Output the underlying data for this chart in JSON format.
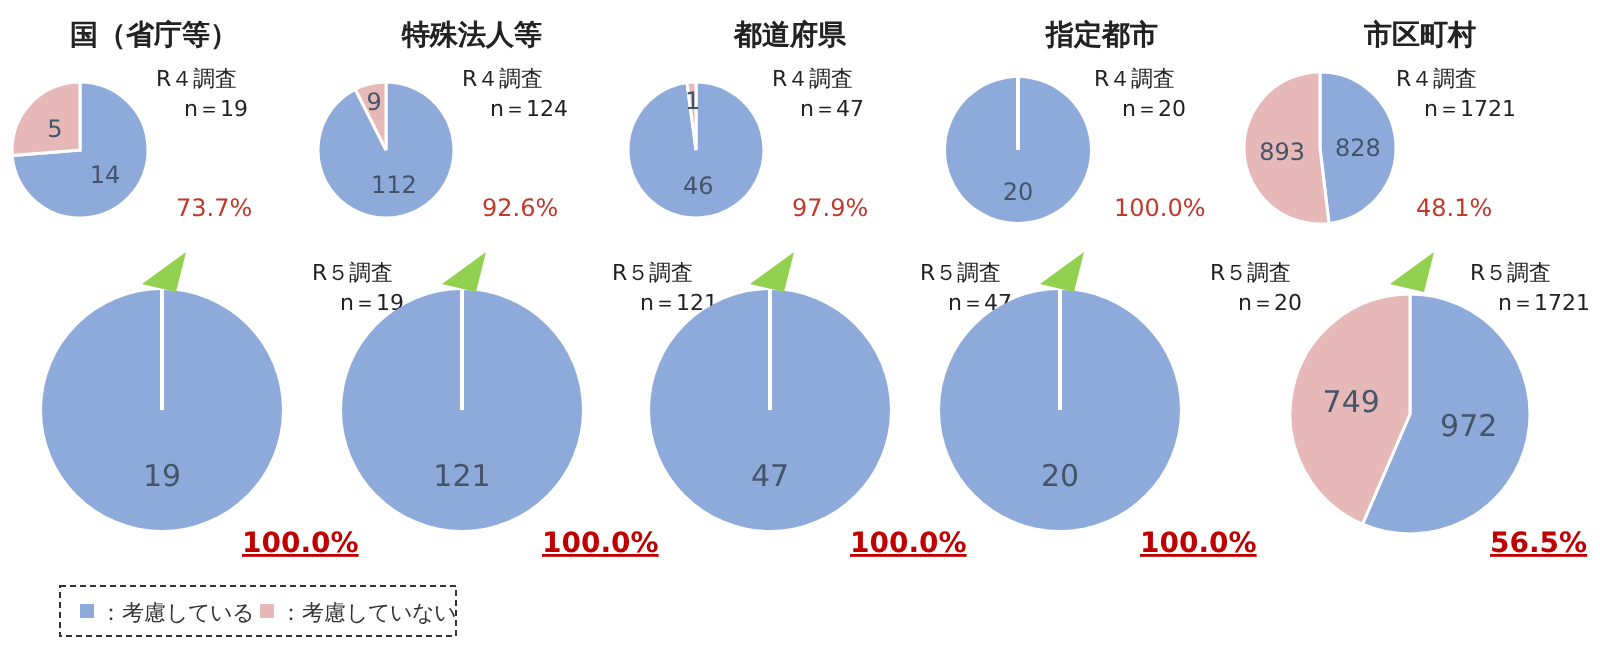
{
  "chart_data": [
    {
      "type": "pie",
      "title": "国（省庁等）",
      "categories": [
        "：考慮している",
        "：考慮していない"
      ],
      "values": [
        14,
        5
      ],
      "colors": [
        "#8eaadb",
        "#e6b8b7"
      ],
      "data_labels": true,
      "legend": "bottom",
      "annotations": [
        "R４調査",
        "n＝19",
        "73.7%"
      ]
    },
    {
      "type": "pie",
      "title": "特殊法人等",
      "categories": [
        null,
        null
      ],
      "values": [
        112,
        9
      ],
      "colors": [
        "#8eaadb",
        "#e6b8b7"
      ],
      "data_labels": true,
      "annotations": [
        "R４調査",
        "n＝124",
        "92.6%"
      ]
    },
    {
      "type": "pie",
      "title": "都道府県",
      "categories": [
        null,
        null
      ],
      "values": [
        46,
        1
      ],
      "colors": [
        "#8eaadb",
        "#e6b8b7"
      ],
      "data_labels": true,
      "annotations": [
        "R４調査",
        "n＝47",
        "97.9%"
      ]
    },
    {
      "type": "pie",
      "title": "指定都市",
      "categories": [
        null,
        null
      ],
      "values": [
        20,
        0
      ],
      "colors": [
        "#8eaadb",
        "#e6b8b7"
      ],
      "value_labels": [
        "20",
        null
      ],
      "annotations": [
        "R４調査",
        "n＝20",
        "100.0%"
      ]
    },
    {
      "type": "pie",
      "title": "市区町村",
      "categories": [
        null,
        null
      ],
      "values": [
        828,
        893
      ],
      "colors": [
        "#8eaadb",
        "#e6b8b7"
      ],
      "data_labels": true,
      "annotations": [
        "R４調査",
        "n＝1721",
        "48.1%"
      ]
    },
    {
      "type": "pie",
      "categories": [
        null,
        null
      ],
      "values": [
        19,
        0
      ],
      "colors": [
        "#8eaadb",
        "#e6b8b7"
      ],
      "value_labels": [
        "19",
        null
      ],
      "annotations": [
        "R５調査",
        "n＝19",
        "100.0%"
      ]
    },
    {
      "type": "pie",
      "categories": [
        null,
        null
      ],
      "values": [
        121,
        0
      ],
      "colors": [
        "#8eaadb",
        "#e6b8b7"
      ],
      "value_labels": [
        "121",
        null
      ],
      "annotations": [
        "R５調査",
        "n＝121",
        "100.0%"
      ]
    },
    {
      "type": "pie",
      "categories": [
        null,
        null
      ],
      "values": [
        47,
        0
      ],
      "colors": [
        "#8eaadb",
        "#e6b8b7"
      ],
      "value_labels": [
        "47",
        null
      ],
      "annotations": [
        "R５調査",
        "n＝47",
        "100.0%"
      ]
    },
    {
      "type": "pie",
      "categories": [
        null,
        null
      ],
      "values": [
        20,
        0
      ],
      "colors": [
        "#8eaadb",
        "#e6b8b7"
      ],
      "value_labels": [
        "20",
        null
      ],
      "annotations": [
        "R５調査",
        "n＝20",
        "100.0%"
      ]
    },
    {
      "type": "pie",
      "categories": [
        null,
        null
      ],
      "values": [
        972,
        749
      ],
      "colors": [
        "#8eaadb",
        "#e6b8b7"
      ],
      "data_labels": true,
      "annotations": [
        "R５調査",
        "n＝1721",
        "56.5%"
      ]
    }
  ]
}
